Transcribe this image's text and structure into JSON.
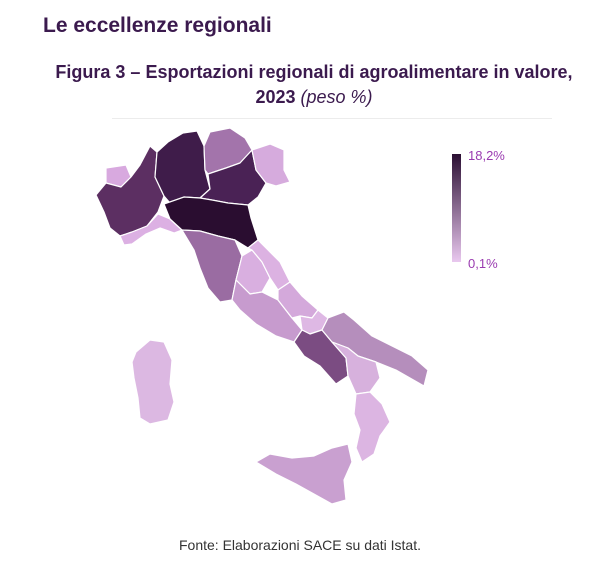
{
  "header": {
    "section_title": "Le eccellenze regionali",
    "figure_title_main": "Figura 3 – Esportazioni regionali di agroalimentare in valore, 2023",
    "figure_title_unit": "(peso %)"
  },
  "legend": {
    "max_label": "18,2%",
    "min_label": "0,1%",
    "colors": {
      "max": "#2b0f33",
      "min": "#e9c8ef"
    }
  },
  "source": "Fonte: Elaborazioni SACE su dati Istat."
}
